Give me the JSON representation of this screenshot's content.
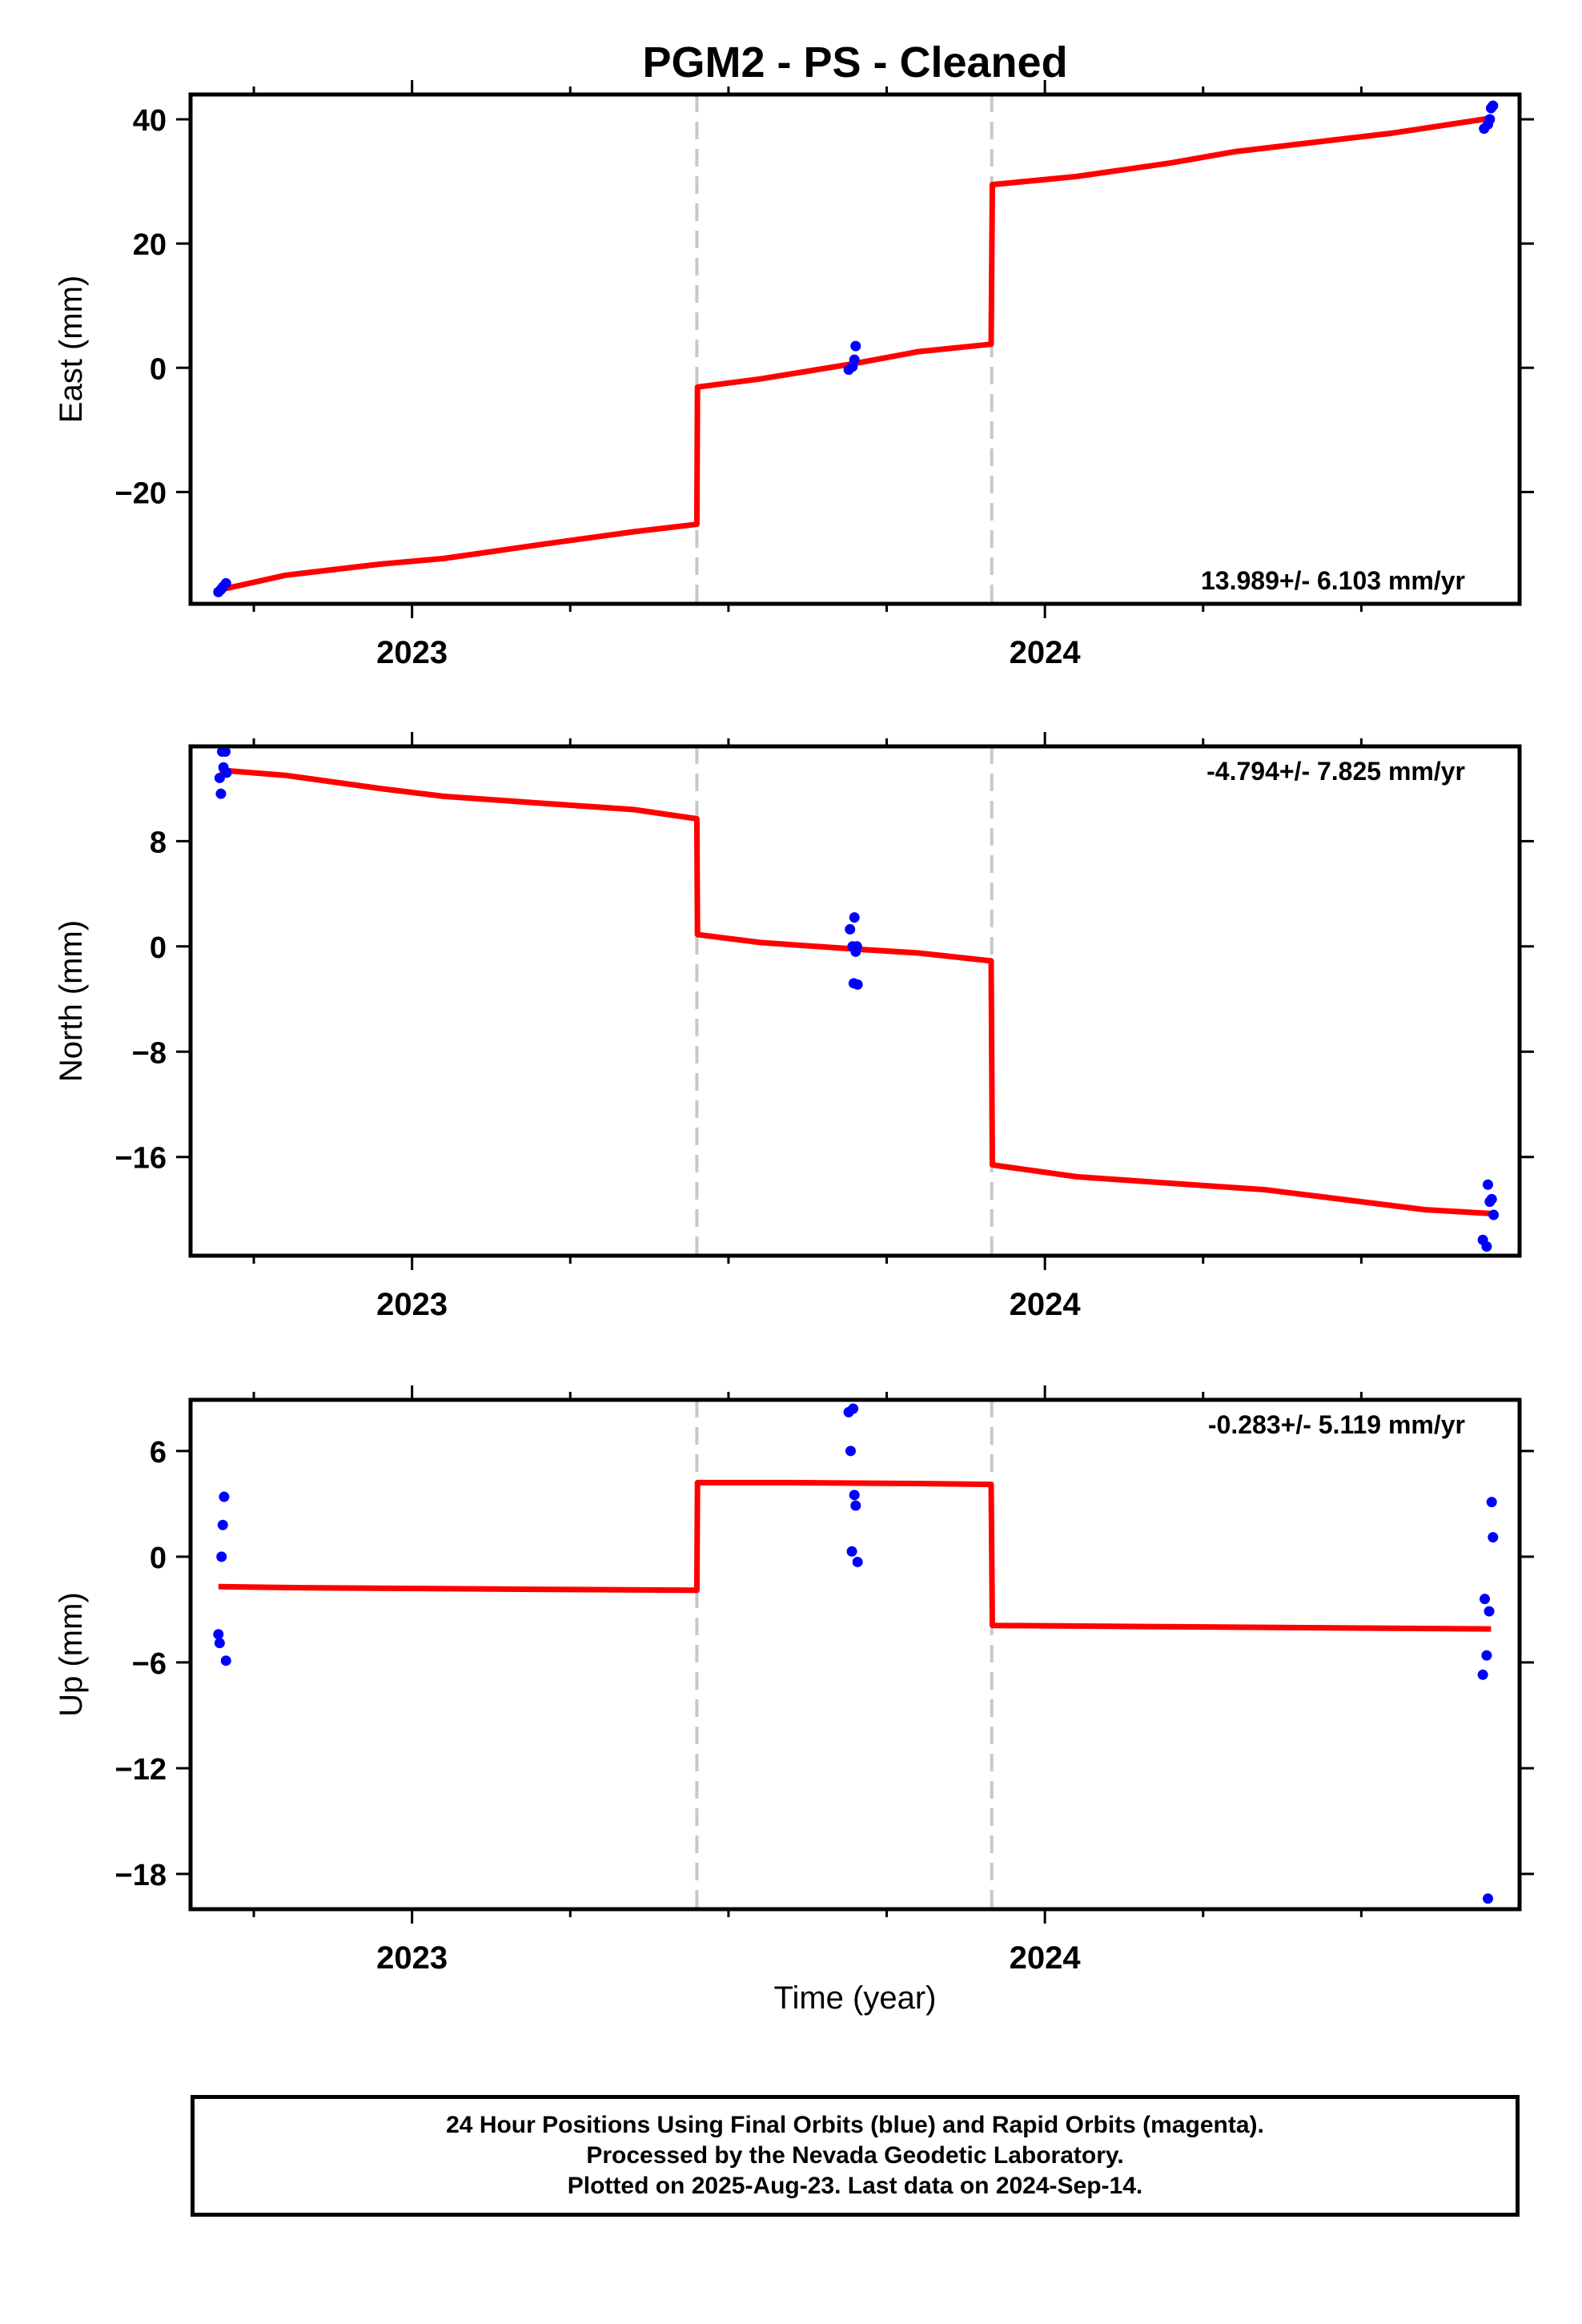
{
  "title": "PGM2  - PS - Cleaned",
  "xlabel": "Time (year)",
  "colors": {
    "fit": "#ff0000",
    "points": "#0000ff",
    "offset_line": "#c8c8c8",
    "frame": "#000000"
  },
  "chart_data": [
    {
      "type": "scatter",
      "name": "east",
      "ylabel": "East (mm)",
      "xlim": [
        2022.65,
        2024.75
      ],
      "ylim": [
        -38,
        44
      ],
      "yticks": [
        -20,
        0,
        20,
        40
      ],
      "xticks": [
        2023,
        2024
      ],
      "x_minor_ticks": [
        2022.75,
        2023.25,
        2023.5,
        2023.75,
        2024.25,
        2024.5
      ],
      "offset_lines": [
        2023.45,
        2023.916
      ],
      "rate_label": "13.989+/- 6.103 mm/yr",
      "points": [
        [
          2022.694,
          -36.1
        ],
        [
          2022.698,
          -35.7
        ],
        [
          2022.701,
          -35.3
        ],
        [
          2022.706,
          -34.7
        ],
        [
          2023.69,
          -0.3
        ],
        [
          2023.696,
          0.2
        ],
        [
          2023.699,
          1.3
        ],
        [
          2023.701,
          3.5
        ],
        [
          2024.694,
          38.5
        ],
        [
          2024.7,
          39.2
        ],
        [
          2024.703,
          40.0
        ],
        [
          2024.705,
          41.8
        ],
        [
          2024.708,
          42.2
        ]
      ],
      "fit": [
        [
          2022.694,
          -35.8
        ],
        [
          2022.8,
          -33.4
        ],
        [
          2022.95,
          -31.6
        ],
        [
          2023.05,
          -30.7
        ],
        [
          2023.2,
          -28.5
        ],
        [
          2023.35,
          -26.4
        ],
        [
          2023.45,
          -25.2
        ],
        [
          2023.451,
          -3.1
        ],
        [
          2023.55,
          -1.8
        ],
        [
          2023.7,
          0.7
        ],
        [
          2023.8,
          2.6
        ],
        [
          2023.915,
          3.8
        ],
        [
          2023.917,
          29.5
        ],
        [
          2024.05,
          30.8
        ],
        [
          2024.2,
          33.0
        ],
        [
          2024.3,
          34.8
        ],
        [
          2024.45,
          36.6
        ],
        [
          2024.55,
          37.8
        ],
        [
          2024.705,
          40.2
        ]
      ]
    },
    {
      "type": "scatter",
      "name": "north",
      "ylabel": "North (mm)",
      "xlim": [
        2022.65,
        2024.75
      ],
      "ylim": [
        -23.5,
        15.2
      ],
      "yticks": [
        -16,
        -8,
        0,
        8
      ],
      "xticks": [
        2023,
        2024
      ],
      "x_minor_ticks": [
        2022.75,
        2023.25,
        2023.5,
        2023.75,
        2024.25,
        2024.5
      ],
      "offset_lines": [
        2023.45,
        2023.916
      ],
      "rate_label": "-4.794+/- 7.825 mm/yr",
      "points": [
        [
          2022.696,
          12.8
        ],
        [
          2022.698,
          11.6
        ],
        [
          2022.7,
          14.8
        ],
        [
          2022.702,
          13.6
        ],
        [
          2022.705,
          14.8
        ],
        [
          2022.707,
          13.2
        ],
        [
          2023.692,
          1.3
        ],
        [
          2023.696,
          0.0
        ],
        [
          2023.699,
          2.2
        ],
        [
          2023.701,
          -0.4
        ],
        [
          2023.703,
          0.0
        ],
        [
          2023.698,
          -2.8
        ],
        [
          2023.704,
          -2.9
        ],
        [
          2024.692,
          -22.3
        ],
        [
          2024.698,
          -22.8
        ],
        [
          2024.7,
          -18.1
        ],
        [
          2024.703,
          -19.4
        ],
        [
          2024.706,
          -19.2
        ],
        [
          2024.709,
          -20.4
        ]
      ],
      "fit": [
        [
          2022.696,
          13.4
        ],
        [
          2022.8,
          13.0
        ],
        [
          2022.95,
          12.0
        ],
        [
          2023.05,
          11.4
        ],
        [
          2023.2,
          10.9
        ],
        [
          2023.35,
          10.4
        ],
        [
          2023.45,
          9.7
        ],
        [
          2023.451,
          0.9
        ],
        [
          2023.55,
          0.3
        ],
        [
          2023.7,
          -0.2
        ],
        [
          2023.8,
          -0.5
        ],
        [
          2023.915,
          -1.1
        ],
        [
          2023.917,
          -16.6
        ],
        [
          2024.05,
          -17.5
        ],
        [
          2024.2,
          -18.0
        ],
        [
          2024.35,
          -18.5
        ],
        [
          2024.5,
          -19.4
        ],
        [
          2024.6,
          -20.0
        ],
        [
          2024.705,
          -20.3
        ]
      ]
    },
    {
      "type": "scatter",
      "name": "up",
      "ylabel": "Up (mm)",
      "xlim": [
        2022.65,
        2024.75
      ],
      "ylim": [
        -20,
        8.9
      ],
      "yticks": [
        -18,
        -12,
        -6,
        0,
        6
      ],
      "xticks": [
        2023,
        2024
      ],
      "x_minor_ticks": [
        2022.75,
        2023.25,
        2023.5,
        2023.75,
        2024.25,
        2024.5
      ],
      "offset_lines": [
        2023.45,
        2023.916
      ],
      "rate_label": "-0.283+/- 5.119 mm/yr",
      "points": [
        [
          2022.694,
          -4.4
        ],
        [
          2022.696,
          -4.9
        ],
        [
          2022.699,
          0.0
        ],
        [
          2022.701,
          1.8
        ],
        [
          2022.703,
          3.4
        ],
        [
          2022.706,
          -5.9
        ],
        [
          2023.69,
          8.2
        ],
        [
          2023.693,
          6.0
        ],
        [
          2023.695,
          0.3
        ],
        [
          2023.697,
          8.4
        ],
        [
          2023.699,
          3.5
        ],
        [
          2023.701,
          2.9
        ],
        [
          2023.704,
          -0.3
        ],
        [
          2024.692,
          -6.7
        ],
        [
          2024.695,
          -2.4
        ],
        [
          2024.698,
          -5.6
        ],
        [
          2024.7,
          -19.4
        ],
        [
          2024.702,
          -3.1
        ],
        [
          2024.706,
          3.1
        ],
        [
          2024.708,
          1.1
        ]
      ],
      "fit": [
        [
          2022.694,
          -1.7
        ],
        [
          2022.8,
          -1.75
        ],
        [
          2023.0,
          -1.8
        ],
        [
          2023.2,
          -1.85
        ],
        [
          2023.45,
          -1.9
        ],
        [
          2023.451,
          4.2
        ],
        [
          2023.6,
          4.2
        ],
        [
          2023.8,
          4.15
        ],
        [
          2023.915,
          4.1
        ],
        [
          2023.917,
          -3.9
        ],
        [
          2024.1,
          -3.95
        ],
        [
          2024.3,
          -4.0
        ],
        [
          2024.5,
          -4.05
        ],
        [
          2024.705,
          -4.1
        ]
      ]
    }
  ],
  "footer": {
    "line1": "24 Hour Positions Using Final Orbits (blue) and Rapid Orbits (magenta).",
    "line2": "Processed by the Nevada Geodetic Laboratory.",
    "line3": "Plotted on 2025-Aug-23. Last data on 2024-Sep-14."
  }
}
